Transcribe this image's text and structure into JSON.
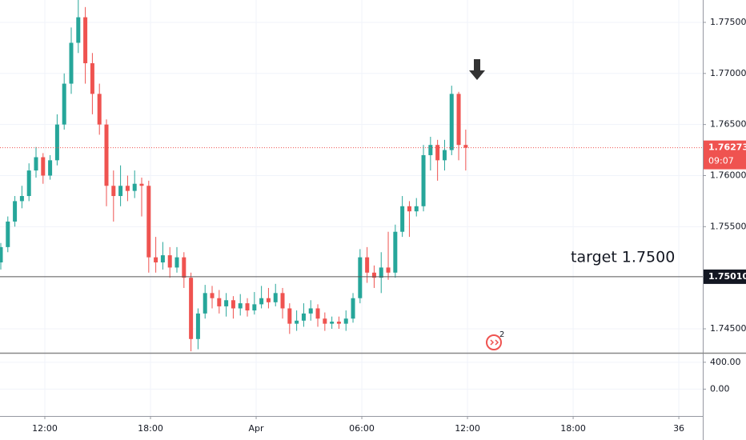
{
  "chart_data": {
    "type": "candlestick",
    "up_color": "#26a69a",
    "down_color": "#ef5350",
    "x": [
      -2.5,
      -2.1,
      -1.7,
      -1.3,
      -0.9,
      -0.5,
      -0.1,
      0.3,
      0.7,
      1.1,
      1.5,
      1.9,
      2.3,
      2.7,
      3.1,
      3.5,
      3.9,
      4.3,
      4.7,
      5.1,
      5.5,
      5.9,
      6.3,
      6.7,
      7.1,
      7.5,
      7.9,
      8.3,
      8.7,
      9.1,
      9.5,
      9.9,
      10.3,
      10.7,
      11.1,
      11.5,
      11.9,
      12.3,
      12.7,
      13.1,
      13.5,
      13.9,
      14.3,
      14.7,
      15.1,
      15.5,
      15.9,
      16.3,
      16.7,
      17.1,
      17.5,
      17.9,
      18.3,
      18.7,
      19.1,
      19.5,
      19.9,
      20.3,
      20.7,
      21.1,
      21.5,
      21.9,
      22.3,
      22.7,
      23.1,
      23.5,
      23.9
    ],
    "open": [
      1.7515,
      1.753,
      1.7555,
      1.7575,
      1.758,
      1.7605,
      1.7618,
      1.76,
      1.7615,
      1.765,
      1.769,
      1.773,
      1.7755,
      1.771,
      1.768,
      1.765,
      1.759,
      1.758,
      1.759,
      1.7585,
      1.7592,
      1.759,
      1.752,
      1.7515,
      1.7522,
      1.751,
      1.752,
      1.75,
      1.744,
      1.7465,
      1.7485,
      1.748,
      1.7472,
      1.7478,
      1.747,
      1.7475,
      1.7468,
      1.7474,
      1.748,
      1.7476,
      1.7485,
      1.747,
      1.7455,
      1.7458,
      1.7465,
      1.747,
      1.746,
      1.7455,
      1.7457,
      1.7455,
      1.746,
      1.748,
      1.752,
      1.7505,
      1.75,
      1.751,
      1.7505,
      1.7545,
      1.757,
      1.7565,
      1.757,
      1.762,
      1.763,
      1.7615,
      1.7625,
      1.768,
      1.763
    ],
    "high": [
      1.7534,
      1.756,
      1.758,
      1.759,
      1.7612,
      1.7628,
      1.7622,
      1.762,
      1.766,
      1.77,
      1.7745,
      1.7772,
      1.7765,
      1.772,
      1.769,
      1.7655,
      1.7605,
      1.761,
      1.76,
      1.7605,
      1.7598,
      1.7595,
      1.754,
      1.7535,
      1.753,
      1.753,
      1.7525,
      1.7505,
      1.747,
      1.7493,
      1.7492,
      1.7488,
      1.7485,
      1.7482,
      1.7484,
      1.748,
      1.7486,
      1.7492,
      1.749,
      1.7494,
      1.749,
      1.7475,
      1.7468,
      1.7475,
      1.7478,
      1.7474,
      1.7466,
      1.7462,
      1.7462,
      1.7468,
      1.7485,
      1.7528,
      1.753,
      1.7512,
      1.7525,
      1.7545,
      1.7552,
      1.758,
      1.7575,
      1.7578,
      1.763,
      1.7638,
      1.7635,
      1.7635,
      1.7688,
      1.7682,
      1.7645
    ],
    "low": [
      1.7508,
      1.7525,
      1.755,
      1.7568,
      1.7575,
      1.7598,
      1.7592,
      1.7596,
      1.761,
      1.7645,
      1.768,
      1.772,
      1.769,
      1.766,
      1.764,
      1.757,
      1.7555,
      1.757,
      1.7575,
      1.7578,
      1.756,
      1.7505,
      1.7505,
      1.7508,
      1.75,
      1.7505,
      1.749,
      1.7428,
      1.743,
      1.746,
      1.747,
      1.7465,
      1.7462,
      1.746,
      1.7463,
      1.7462,
      1.7464,
      1.747,
      1.747,
      1.7472,
      1.746,
      1.7445,
      1.7448,
      1.7452,
      1.7458,
      1.7452,
      1.7448,
      1.745,
      1.745,
      1.7448,
      1.7456,
      1.7475,
      1.7495,
      1.749,
      1.7485,
      1.7498,
      1.75,
      1.754,
      1.754,
      1.756,
      1.7565,
      1.7605,
      1.7595,
      1.7605,
      1.762,
      1.7615,
      1.7605
    ],
    "close": [
      1.753,
      1.7555,
      1.7575,
      1.758,
      1.7605,
      1.7618,
      1.76,
      1.7615,
      1.765,
      1.769,
      1.773,
      1.7755,
      1.771,
      1.768,
      1.765,
      1.759,
      1.758,
      1.759,
      1.7585,
      1.7592,
      1.759,
      1.752,
      1.7515,
      1.7522,
      1.751,
      1.752,
      1.75,
      1.744,
      1.7465,
      1.7485,
      1.748,
      1.7472,
      1.7478,
      1.747,
      1.7475,
      1.7468,
      1.7474,
      1.748,
      1.7476,
      1.7485,
      1.747,
      1.7455,
      1.7458,
      1.7465,
      1.747,
      1.746,
      1.7455,
      1.7457,
      1.7455,
      1.746,
      1.748,
      1.752,
      1.7505,
      1.75,
      1.751,
      1.7505,
      1.7545,
      1.757,
      1.7565,
      1.757,
      1.762,
      1.763,
      1.7615,
      1.7625,
      1.768,
      1.763,
      1.76273
    ],
    "xlim": [
      -2.545,
      37.36
    ],
    "xticks": [
      {
        "value": 0,
        "label": "12:00"
      },
      {
        "value": 6,
        "label": "18:00"
      },
      {
        "value": 12,
        "label": "Apr"
      },
      {
        "value": 18,
        "label": "06:00"
      },
      {
        "value": 24,
        "label": "12:00"
      },
      {
        "value": 30,
        "label": "18:00"
      },
      36
    ],
    "ylim": [
      1.74273,
      1.77719
    ],
    "yticks": [
      {
        "value": 1.775,
        "label": "1.77500"
      },
      {
        "value": 1.77,
        "label": "1.77000"
      },
      {
        "value": 1.765,
        "label": "1.76500"
      },
      {
        "value": 1.76,
        "label": "1.76000"
      },
      {
        "value": 1.755,
        "label": "1.75500"
      },
      {
        "value": 1.745,
        "label": "1.74500"
      }
    ],
    "horizontal_line": {
      "value": 1.7501,
      "label": "1.75010",
      "color": "#555555"
    },
    "last_price": {
      "value": 1.76273,
      "label": "1.76273",
      "countdown": "09:07",
      "color": "#ef5350"
    },
    "annotation": "target 1.7500",
    "badge": "2",
    "indicator_pane": {
      "ylim": [
        -400,
        529
      ],
      "yticks": [
        {
          "value": 400,
          "label": "400.00"
        },
        {
          "value": 0,
          "label": "0.00"
        }
      ]
    },
    "grid": true
  }
}
